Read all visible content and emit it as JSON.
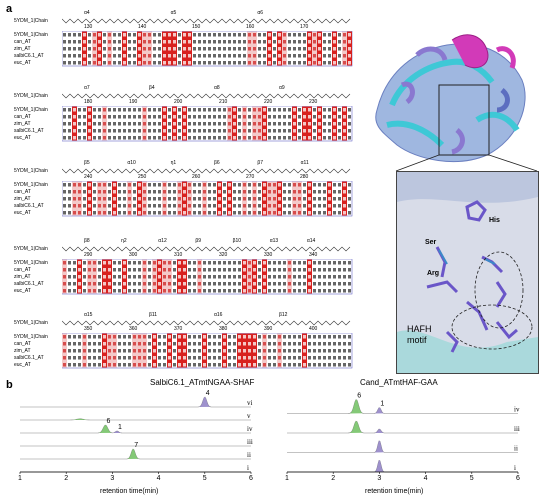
{
  "panel_a": {
    "letter": "a"
  },
  "panel_b": {
    "letter": "b"
  },
  "alignment": {
    "row_names": [
      "5YDM_1|Chain",
      "can_AT",
      "zim_AT",
      "salbiC6.1_AT",
      "euc_AT"
    ],
    "blocks": [
      {
        "ss_label": "5YDM_1|Chain",
        "helices": [
          "α4",
          "α5",
          "α6"
        ],
        "numbers": [
          "130",
          "140",
          "150",
          "160",
          "170"
        ]
      },
      {
        "ss_label": "5YDM_1|Chain",
        "helices": [
          "α7",
          "β4",
          "α8",
          "α9"
        ],
        "numbers": [
          "180",
          "190",
          "200",
          "210",
          "220",
          "230"
        ]
      },
      {
        "ss_label": "5YDM_1|Chain",
        "helices": [
          "β5",
          "α10",
          "η1",
          "β6",
          "β7",
          "α11"
        ],
        "numbers": [
          "240",
          "250",
          "260",
          "270",
          "280"
        ],
        "tt": [
          "TT",
          "TT"
        ]
      },
      {
        "ss_label": "5YDM_1|Chain",
        "helices": [
          "β8",
          "η2",
          "α12",
          "β9",
          "β10",
          "α13",
          "α14"
        ],
        "numbers": [
          "290",
          "300",
          "310",
          "320",
          "330",
          "340"
        ],
        "tt": [
          "TT"
        ]
      },
      {
        "ss_label": "5YDM_1|Chain",
        "helices": [
          "α15",
          "β11",
          "α16",
          "β12"
        ],
        "numbers": [
          "350",
          "360",
          "370",
          "380",
          "390",
          "400"
        ],
        "tt": [
          "TT",
          "TT"
        ]
      }
    ]
  },
  "structure": {
    "labels": {
      "his": "His",
      "ser": "Ser",
      "arg": "Arg",
      "hafh": "HAFH",
      "motif": "motif"
    }
  },
  "chromatograms": {
    "left": {
      "title": "SalbiC6.1_ATmtNGAA-SHAF",
      "traces": [
        "vi",
        "v",
        "iv",
        "iii",
        "ii",
        "i"
      ],
      "peak_labels": [
        "4",
        "6",
        "1",
        "7"
      ],
      "xticks": [
        "1",
        "2",
        "3",
        "4",
        "5",
        "6"
      ],
      "xlabel": "retention time(min)"
    },
    "right": {
      "title": "Cand_ATmtHAF-GAA",
      "traces": [
        "iv",
        "iii",
        "ii",
        "i"
      ],
      "peak_labels": [
        "6",
        "1"
      ],
      "xticks": [
        "1",
        "2",
        "3",
        "4",
        "5",
        "6"
      ],
      "xlabel": "retention time(min)"
    },
    "colors": {
      "green": "#6fbf5f",
      "purple": "#8d7ec4"
    }
  }
}
